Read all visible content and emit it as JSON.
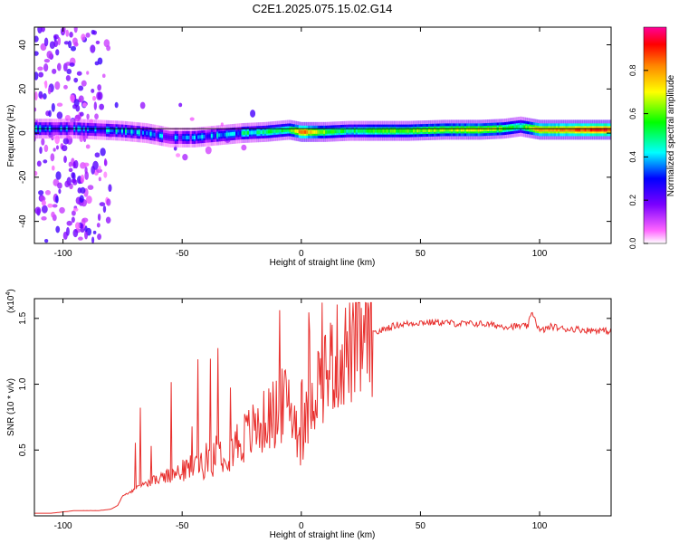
{
  "title": "C2E1.2025.075.15.02.G14",
  "colors": {
    "snr_line": "#e8302e",
    "axis": "#000000",
    "colorbar": [
      "#ffffff",
      "#ff55ff",
      "#7700ff",
      "#0000ff",
      "#00ffff",
      "#00ff00",
      "#ffff00",
      "#ff8800",
      "#ff0000",
      "#ff00aa"
    ]
  },
  "chart_data": [
    {
      "type": "heatmap",
      "xlabel": "Height of straight line (km)",
      "ylabel": "Frequency (Hz)",
      "xlim": [
        -112,
        130
      ],
      "ylim": [
        -50,
        48
      ],
      "xticks": [
        "-100",
        "-50",
        "0",
        "50",
        "100"
      ],
      "xtick_values": [
        -100,
        -50,
        0,
        50,
        100
      ],
      "yticks": [
        "40",
        "20",
        "0",
        "-20",
        "-40"
      ],
      "ytick_values": [
        40,
        20,
        0,
        -20,
        -40
      ],
      "colorbar": {
        "label": "Normalized spectral amplitude",
        "range": [
          0,
          1
        ],
        "ticks": [
          "0.0",
          "0.2",
          "0.4",
          "0.6",
          "0.8"
        ],
        "tick_values": [
          0.0,
          0.2,
          0.4,
          0.6,
          0.8
        ]
      },
      "ridge": {
        "frequency_hz": 2,
        "points": [
          {
            "x": -110,
            "y": 2,
            "amp": 0.35
          },
          {
            "x": -95,
            "y": 2,
            "amp": 0.3
          },
          {
            "x": -85,
            "y": 1.5,
            "amp": 0.35
          },
          {
            "x": -75,
            "y": 1,
            "amp": 0.4
          },
          {
            "x": -65,
            "y": 0,
            "amp": 0.35
          },
          {
            "x": -55,
            "y": -2,
            "amp": 0.3
          },
          {
            "x": -45,
            "y": -2,
            "amp": 0.3
          },
          {
            "x": -35,
            "y": -1,
            "amp": 0.35
          },
          {
            "x": -25,
            "y": 0,
            "amp": 0.4
          },
          {
            "x": -15,
            "y": 0.5,
            "amp": 0.5
          },
          {
            "x": -5,
            "y": 1.5,
            "amp": 0.55
          },
          {
            "x": 0,
            "y": 0.5,
            "amp": 0.85
          },
          {
            "x": 10,
            "y": 0.5,
            "amp": 0.6
          },
          {
            "x": 20,
            "y": 1,
            "amp": 0.5
          },
          {
            "x": 30,
            "y": 1,
            "amp": 0.55
          },
          {
            "x": 45,
            "y": 1,
            "amp": 0.6
          },
          {
            "x": 60,
            "y": 1.5,
            "amp": 0.65
          },
          {
            "x": 75,
            "y": 1.5,
            "amp": 0.7
          },
          {
            "x": 85,
            "y": 2,
            "amp": 0.6
          },
          {
            "x": 92,
            "y": 3,
            "amp": 0.5
          },
          {
            "x": 100,
            "y": 1.5,
            "amp": 0.8
          },
          {
            "x": 115,
            "y": 1.5,
            "amp": 0.85
          },
          {
            "x": 130,
            "y": 1.5,
            "amp": 0.9
          }
        ]
      }
    },
    {
      "type": "line",
      "xlabel": "Height of straight line (km)",
      "ylabel": "SNR (10 * v/v)",
      "scale_label": "(x10",
      "scale_exponent": "4",
      "xlim": [
        -112,
        130
      ],
      "ylim": [
        0,
        1.65
      ],
      "xticks": [
        "-100",
        "-50",
        "0",
        "50",
        "100"
      ],
      "xtick_values": [
        -100,
        -50,
        0,
        50,
        100
      ],
      "yticks": [
        "1.5",
        "1.0",
        "0.5"
      ],
      "ytick_values": [
        1.5,
        1.0,
        0.5
      ],
      "series": [
        {
          "x": [
            -112,
            -105,
            -100,
            -95,
            -90,
            -85,
            -80,
            -77,
            -75,
            -70,
            -65,
            -60,
            -55,
            -50,
            -45,
            -40,
            -35,
            -30,
            -25,
            -20,
            -15,
            -10,
            -5,
            0,
            5,
            10,
            15,
            20,
            25,
            30,
            35,
            40,
            45,
            50,
            55,
            60,
            65,
            70,
            75,
            80,
            85,
            90,
            95,
            97,
            100,
            105,
            110,
            115,
            120,
            125,
            130
          ],
          "y": [
            0.02,
            0.02,
            0.03,
            0.04,
            0.04,
            0.04,
            0.05,
            0.08,
            0.15,
            0.2,
            0.25,
            0.28,
            0.3,
            0.34,
            0.38,
            0.42,
            0.48,
            0.52,
            0.58,
            0.65,
            0.72,
            0.8,
            0.88,
            0.55,
            0.95,
            1.1,
            1.2,
            1.25,
            1.3,
            1.38,
            1.42,
            1.45,
            1.46,
            1.47,
            1.47,
            1.47,
            1.46,
            1.46,
            1.46,
            1.45,
            1.44,
            1.44,
            1.44,
            1.55,
            1.4,
            1.44,
            1.42,
            1.42,
            1.41,
            1.41,
            1.4
          ]
        }
      ]
    }
  ]
}
